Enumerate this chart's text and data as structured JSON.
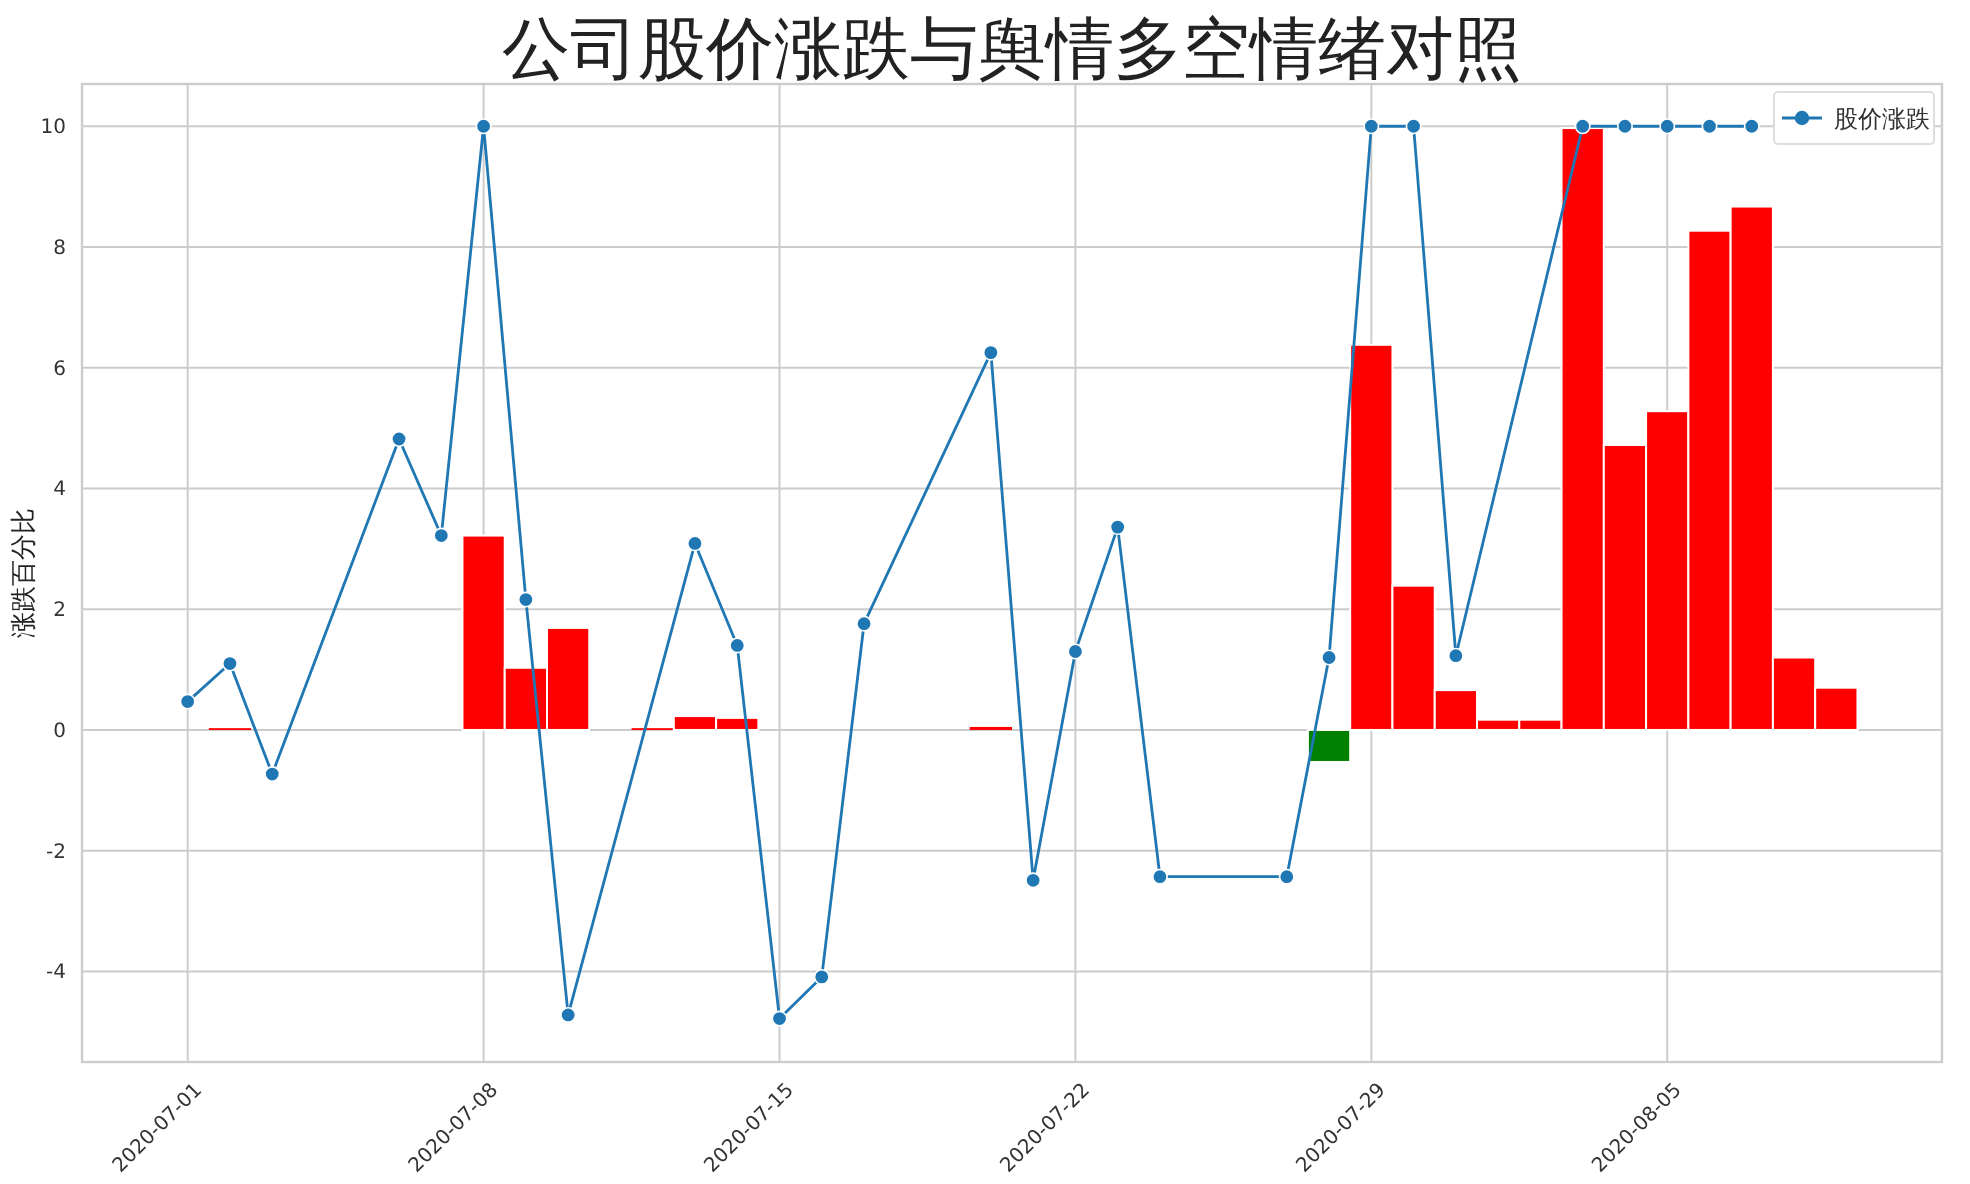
{
  "chart_data": {
    "type": "bar",
    "title": "公司股价涨跌与舆情多空情绪对照",
    "ylabel": "涨跌百分比",
    "series": [
      {
        "x": [
          "2020-07-02",
          "2020-07-08",
          "2020-07-09",
          "2020-07-10",
          "2020-07-12",
          "2020-07-13",
          "2020-07-14",
          "2020-07-20",
          "2020-07-28",
          "2020-07-29",
          "2020-07-30",
          "2020-07-31",
          "2020-08-01",
          "2020-08-02",
          "2020-08-03",
          "2020-08-04",
          "2020-08-05",
          "2020-08-06",
          "2020-08-07",
          "2020-08-08",
          "2020-08-09"
        ],
        "values": [
          0.03,
          3.22,
          1.03,
          1.69,
          0.03,
          0.23,
          0.2,
          0.05,
          -0.53,
          6.38,
          2.39,
          0.66,
          0.17,
          0.17,
          9.97,
          4.72,
          5.28,
          8.27,
          8.67,
          1.2,
          0.7
        ],
        "colors": [
          "#ff0000",
          "#ff0000",
          "#ff0000",
          "#ff0000",
          "#ff0000",
          "#ff0000",
          "#ff0000",
          "#ff0000",
          "#008000",
          "#ff0000",
          "#ff0000",
          "#ff0000",
          "#ff0000",
          "#ff0000",
          "#ff0000",
          "#ff0000",
          "#ff0000",
          "#ff0000",
          "#ff0000",
          "#ff0000",
          "#ff0000"
        ]
      },
      {
        "type": "line",
        "name": "股价涨跌",
        "color": "#1f77b4",
        "marker": "circle",
        "line_style": "solid",
        "x": [
          "2020-07-01",
          "2020-07-02",
          "2020-07-03",
          "2020-07-06",
          "2020-07-07",
          "2020-07-08",
          "2020-07-09",
          "2020-07-10",
          "2020-07-13",
          "2020-07-14",
          "2020-07-15",
          "2020-07-16",
          "2020-07-17",
          "2020-07-20",
          "2020-07-21",
          "2020-07-22",
          "2020-07-23",
          "2020-07-24",
          "2020-07-27",
          "2020-07-28",
          "2020-07-29",
          "2020-07-30",
          "2020-07-31",
          "2020-08-03",
          "2020-08-04",
          "2020-08-05",
          "2020-08-06",
          "2020-08-07"
        ],
        "values": [
          0.47,
          1.1,
          -0.73,
          4.82,
          3.22,
          10,
          2.16,
          -4.72,
          3.09,
          1.4,
          -4.78,
          -4.09,
          1.76,
          6.25,
          -2.49,
          1.3,
          3.36,
          -2.43,
          -2.43,
          1.2,
          10,
          10,
          1.23,
          10,
          10,
          10,
          10,
          10
        ]
      }
    ],
    "xlim": [
      "2020-06-28T12:00",
      "2020-08-11T12:00"
    ],
    "xticks": [
      "2020-07-01",
      "2020-07-08",
      "2020-07-15",
      "2020-07-22",
      "2020-07-29",
      "2020-08-05"
    ],
    "ylim": [
      -5.5,
      10.7
    ],
    "yticks": [
      -4,
      -2,
      0,
      2,
      4,
      6,
      8,
      10
    ],
    "grid": true,
    "legend": "top right"
  }
}
